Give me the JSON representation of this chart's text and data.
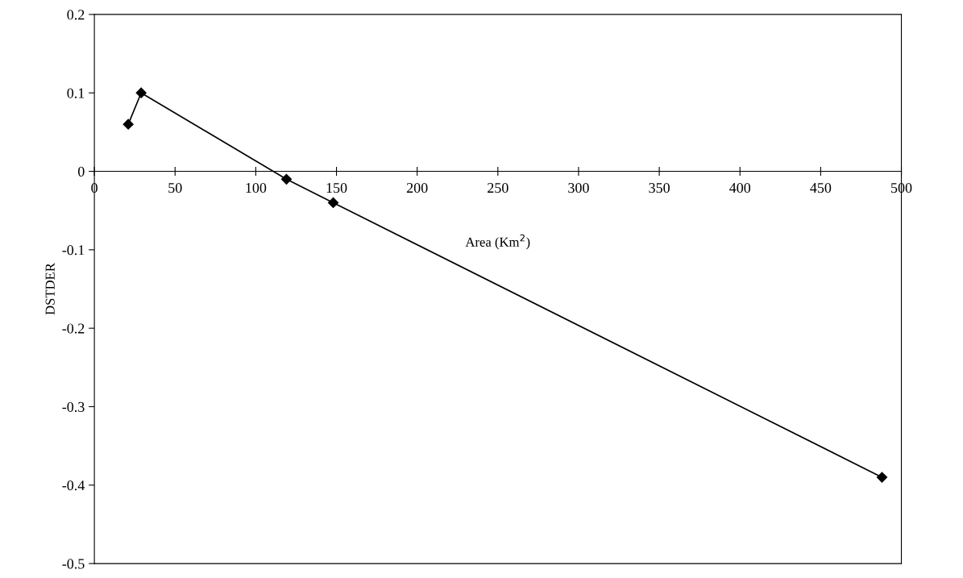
{
  "chart_data": {
    "type": "line",
    "xlabel": "Area (Km$^{2}$)",
    "ylabel": "DSTDER",
    "x": [
      21,
      29,
      119,
      148,
      488
    ],
    "series": [
      {
        "color": "#000000",
        "values": [
          0.06,
          0.1,
          -0.01,
          -0.04,
          -0.39
        ]
      }
    ],
    "xlim": [
      0,
      500
    ],
    "xticks": [
      0,
      50,
      100,
      150,
      200,
      250,
      300,
      350,
      400,
      450,
      500
    ],
    "ylim": [
      -0.5,
      0.2
    ],
    "yticks": [
      -0.5,
      -0.4,
      -0.3,
      -0.2,
      -0.1,
      0,
      0.1,
      0.2
    ],
    "marker": "diamond",
    "line_style": "solid",
    "grid": false,
    "legend": false
  }
}
